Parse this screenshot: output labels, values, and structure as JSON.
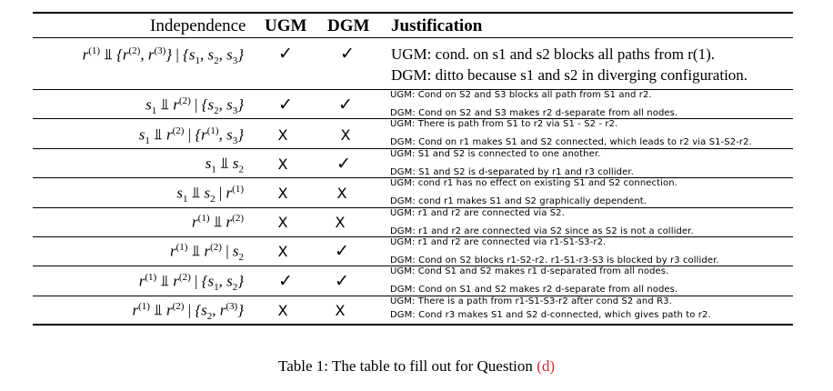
{
  "header": {
    "independence": "Independence",
    "ugm": "UGM",
    "dgm": "DGM",
    "justification": "Justification"
  },
  "rows": [
    {
      "ugm_mark": "✓",
      "dgm_mark": "✓",
      "just_line1": "UGM: cond. on s1 and s2 blocks all paths from r(1).",
      "just_line2": "DGM: ditto because s1 and s2 in diverging configuration."
    },
    {
      "ugm_mark": "✓",
      "dgm_mark": "✓",
      "just_line1": "UGM: Cond on S2 and S3 blocks all path from S1 and r2.",
      "just_line2": "DGM: Cond on S2 and S3 makes r2 d-separate from all nodes."
    },
    {
      "ugm_mark": "X",
      "dgm_mark": "X",
      "just_line1": "UGM: There is path from S1 to r2 via S1 - S2 - r2.",
      "just_line2": "DGM: Cond on r1 makes S1 and S2 connected, which leads to r2 via S1-S2-r2."
    },
    {
      "ugm_mark": "X",
      "dgm_mark": "✓",
      "just_line1": "UGM: S1 and S2 is connected to one another.",
      "just_line2": "DGM: S1 and S2 is d-separated by r1 and r3 collider."
    },
    {
      "ugm_mark": "X",
      "dgm_mark": "X",
      "just_line1": "UGM: cond r1 has no effect on existing S1 and S2 connection.",
      "just_line2": "DGM: cond r1 makes S1 and S2 graphically dependent."
    },
    {
      "ugm_mark": "X",
      "dgm_mark": "X",
      "just_line1": "UGM: r1 and r2 are connected via S2.",
      "just_line2": "DGM: r1 and r2 are connected via S2 since as S2 is not a collider."
    },
    {
      "ugm_mark": "X",
      "dgm_mark": "✓",
      "just_line1": "UGM: r1 and r2 are connected via r1-S1-S3-r2.",
      "just_line2": "DGM: Cond on S2 blocks r1-S2-r2. r1-S1-r3-S3 is blocked by r3 collider."
    },
    {
      "ugm_mark": "✓",
      "dgm_mark": "✓",
      "just_line1": "UGM: Cond S1 and S2 makes r1 d-separated from all nodes.",
      "just_line2": "DGM: Cond on S1 and S2 makes r2 d-separate from all nodes."
    },
    {
      "ugm_mark": "X",
      "dgm_mark": "X",
      "just_line1": "UGM: There is a path from r1-S1-S3-r2 after cond S2 and R3.",
      "just_line2": "DGM: Cond r3 makes S1 and S2 d-connected, which gives path to r2."
    }
  ],
  "caption": {
    "text": "Table 1: The table to fill out for Question ",
    "ref": "(d)"
  }
}
